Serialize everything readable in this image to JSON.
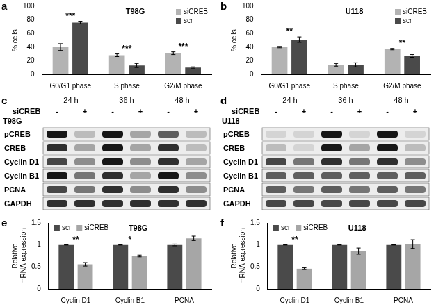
{
  "chart_data": [
    {
      "panel": "a",
      "type": "bar",
      "title": "T98G",
      "categories": [
        "G0/G1 phase",
        "S phase",
        "G2/M phase"
      ],
      "series": [
        {
          "name": "siCREB",
          "color": "#b3b3b3",
          "values": [
            40,
            28,
            31
          ],
          "errors": [
            5,
            2,
            2
          ]
        },
        {
          "name": "scr",
          "color": "#4a4a4a",
          "values": [
            76,
            13,
            10
          ],
          "errors": [
            2,
            3,
            1
          ]
        }
      ],
      "significance": [
        "***",
        "***",
        "***"
      ],
      "y_label": "% cells",
      "ylim": [
        0,
        100
      ],
      "yticks": [
        0,
        20,
        40,
        60,
        80,
        100
      ],
      "legend": "top-right",
      "grid": false
    },
    {
      "panel": "b",
      "type": "bar",
      "title": "U118",
      "categories": [
        "G0/G1 phase",
        "S phase",
        "G2/M phase"
      ],
      "series": [
        {
          "name": "siCREB",
          "color": "#b3b3b3",
          "values": [
            40,
            14,
            37
          ],
          "errors": [
            1,
            2,
            1
          ]
        },
        {
          "name": "scr",
          "color": "#4a4a4a",
          "values": [
            51,
            14,
            27
          ],
          "errors": [
            4,
            3,
            2
          ]
        }
      ],
      "significance": [
        "**",
        null,
        "**"
      ],
      "y_label": "% cells",
      "ylim": [
        0,
        100
      ],
      "yticks": [
        0,
        20,
        40,
        60,
        80,
        100
      ],
      "legend": "top-right",
      "grid": false
    },
    {
      "panel": "e",
      "type": "bar",
      "title": "T98G",
      "categories": [
        "Cyclin D1",
        "Cyclin B1",
        "PCNA"
      ],
      "series": [
        {
          "name": "scr",
          "color": "#4a4a4a",
          "values": [
            1,
            1,
            1
          ],
          "errors": [
            0,
            0,
            0.02
          ]
        },
        {
          "name": "siCREB",
          "color": "#a6a6a6",
          "values": [
            0.56,
            0.75,
            1.15
          ],
          "errors": [
            0.04,
            0.02,
            0.05
          ]
        }
      ],
      "significance": [
        "**",
        "*",
        null
      ],
      "y_label": [
        "Relative",
        "mRNA expression"
      ],
      "ylim": [
        0,
        1.5
      ],
      "yticks": [
        0,
        0.5,
        1,
        1.5
      ],
      "legend": "top-left",
      "grid": false
    },
    {
      "panel": "f",
      "type": "bar",
      "title": "U118",
      "categories": [
        "Cyclin D1",
        "Cyclin B1",
        "PCNA"
      ],
      "series": [
        {
          "name": "scr",
          "color": "#4a4a4a",
          "values": [
            1,
            1,
            1
          ],
          "errors": [
            0,
            0,
            0
          ]
        },
        {
          "name": "siCREB",
          "color": "#a6a6a6",
          "values": [
            0.46,
            0.86,
            1.02
          ],
          "errors": [
            0.02,
            0.07,
            0.1
          ]
        }
      ],
      "significance": [
        "**",
        null,
        null
      ],
      "y_label": [
        "Relative",
        "mRNA expression"
      ],
      "ylim": [
        0,
        1.5
      ],
      "yticks": [
        0,
        0.5,
        1,
        1.5
      ],
      "legend": "top-left",
      "grid": false
    }
  ],
  "blots": [
    {
      "panel": "c",
      "cell_line": "T98G",
      "treatment": "siCREB",
      "times": [
        "24 h",
        "36 h",
        "48 h"
      ],
      "lanes": [
        "-",
        "+",
        "-",
        "+",
        "-",
        "+"
      ],
      "rows": [
        {
          "name": "pCREB",
          "bands": [
            0.9,
            0.2,
            0.9,
            0.3,
            0.6,
            0.2
          ]
        },
        {
          "name": "CREB",
          "bands": [
            0.8,
            0.3,
            0.9,
            0.3,
            0.8,
            0.2
          ]
        },
        {
          "name": "Cyclin D1",
          "bands": [
            0.7,
            0.4,
            0.9,
            0.4,
            0.8,
            0.3
          ]
        },
        {
          "name": "Cyclin B1",
          "bands": [
            0.9,
            0.5,
            0.8,
            0.3,
            0.9,
            0.4
          ]
        },
        {
          "name": "PCNA",
          "bands": [
            0.7,
            0.5,
            0.8,
            0.4,
            0.8,
            0.4
          ]
        },
        {
          "name": "GAPDH",
          "bands": [
            0.8,
            0.8,
            0.8,
            0.8,
            0.8,
            0.8
          ]
        }
      ]
    },
    {
      "panel": "d",
      "cell_line": "U118",
      "treatment": "siCREB",
      "times": [
        "24 h",
        "36 h",
        "48 h"
      ],
      "lanes": [
        "-",
        "+",
        "-",
        "+",
        "-",
        "+"
      ],
      "rows": [
        {
          "name": "pCREB",
          "bands": [
            0.1,
            0.1,
            0.9,
            0.1,
            0.9,
            0.1
          ]
        },
        {
          "name": "CREB",
          "bands": [
            0.2,
            0.1,
            0.9,
            0.3,
            0.9,
            0.2
          ]
        },
        {
          "name": "Cyclin D1",
          "bands": [
            0.7,
            0.5,
            0.8,
            0.5,
            0.8,
            0.4
          ]
        },
        {
          "name": "Cyclin B1",
          "bands": [
            0.6,
            0.6,
            0.6,
            0.6,
            0.6,
            0.6
          ]
        },
        {
          "name": "PCNA",
          "bands": [
            0.6,
            0.5,
            0.6,
            0.5,
            0.6,
            0.5
          ]
        },
        {
          "name": "GAPDH",
          "bands": [
            0.7,
            0.7,
            0.7,
            0.7,
            0.7,
            0.7
          ]
        }
      ]
    }
  ]
}
